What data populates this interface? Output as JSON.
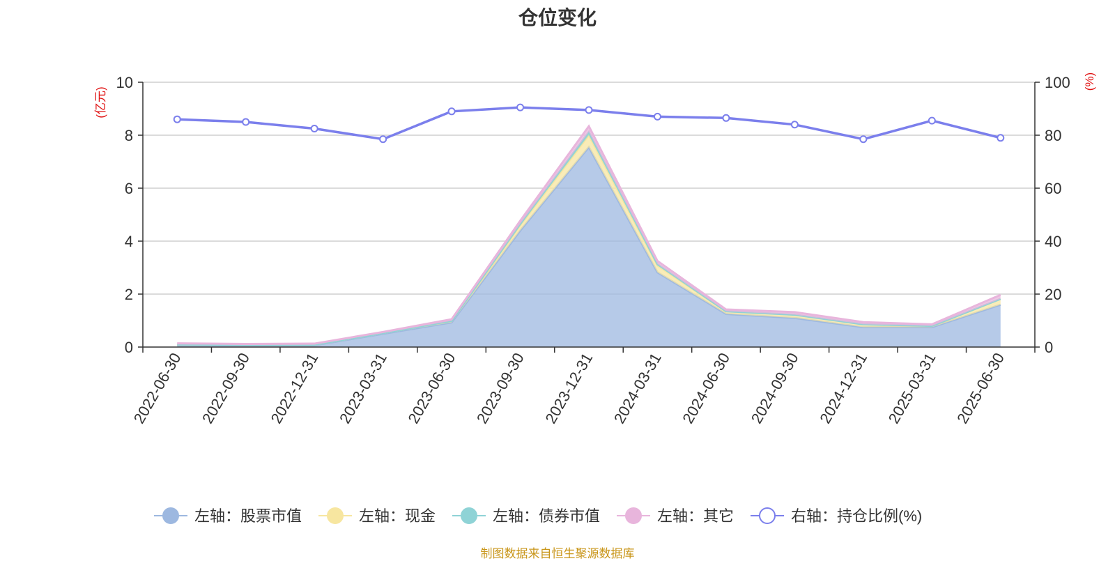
{
  "title": "仓位变化",
  "source": "制图数据来自恒生聚源数据库",
  "chart_data": {
    "type": "area",
    "categories": [
      "2022-06-30",
      "2022-09-30",
      "2022-12-31",
      "2023-03-31",
      "2023-06-30",
      "2023-09-30",
      "2023-12-31",
      "2024-03-31",
      "2024-06-30",
      "2024-09-30",
      "2024-12-31",
      "2025-03-31",
      "2025-06-30"
    ],
    "y_left": {
      "unit": "(亿元)",
      "range": [
        0,
        10
      ],
      "ticks": [
        0,
        2,
        4,
        6,
        8,
        10
      ]
    },
    "y_right": {
      "unit": "(%)",
      "range": [
        0,
        100
      ],
      "ticks": [
        0,
        20,
        40,
        60,
        80,
        100
      ]
    },
    "stacked_series": [
      {
        "name": "左轴：股票市值",
        "color": "#9db8e0",
        "values": [
          0.08,
          0.07,
          0.07,
          0.5,
          0.93,
          4.4,
          7.55,
          2.82,
          1.25,
          1.1,
          0.75,
          0.75,
          1.6
        ]
      },
      {
        "name": "左轴：现金",
        "color": "#f7e6a0",
        "values": [
          0.02,
          0.02,
          0.02,
          0.03,
          0.06,
          0.2,
          0.45,
          0.26,
          0.1,
          0.12,
          0.11,
          0.05,
          0.22
        ]
      },
      {
        "name": "左轴：债券市值",
        "color": "#8fd3d6",
        "values": [
          0.0,
          0.0,
          0.0,
          0.0,
          0.0,
          0.05,
          0.12,
          0.05,
          0.0,
          0.0,
          0.0,
          0.0,
          0.0
        ]
      },
      {
        "name": "左轴：其它",
        "color": "#e8b5dc",
        "values": [
          0.04,
          0.03,
          0.04,
          0.04,
          0.06,
          0.12,
          0.22,
          0.12,
          0.07,
          0.1,
          0.08,
          0.06,
          0.15
        ]
      }
    ],
    "line_series": {
      "name": "右轴：持仓比例(%)",
      "color": "#7b7fec",
      "values": [
        86,
        85,
        82.5,
        78.5,
        89,
        90.5,
        89.5,
        87,
        86.5,
        84,
        78.5,
        85.5,
        79
      ]
    },
    "grid": true,
    "legend_position": "bottom"
  }
}
